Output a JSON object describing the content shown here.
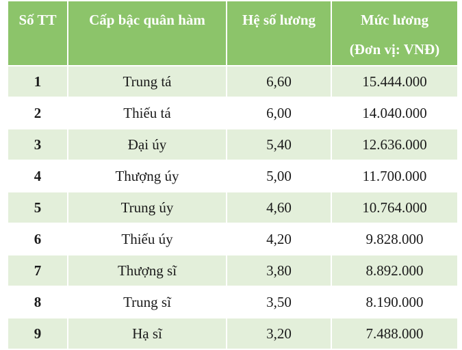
{
  "table": {
    "header": [
      "Số TT",
      "Cấp bậc quân hàm",
      "Hệ số lương",
      "Mức lương"
    ],
    "unit_note": "(Đơn vị: VNĐ)",
    "rows": [
      [
        "1",
        "Trung tá",
        "6,60",
        "15.444.000"
      ],
      [
        "2",
        "Thiếu tá",
        "6,00",
        "14.040.000"
      ],
      [
        "3",
        "Đại úy",
        "5,40",
        "12.636.000"
      ],
      [
        "4",
        "Thượng úy",
        "5,00",
        "11.700.000"
      ],
      [
        "5",
        "Trung úy",
        "4,60",
        "10.764.000"
      ],
      [
        "6",
        "Thiếu úy",
        "4,20",
        "9.828.000"
      ],
      [
        "7",
        "Thượng sĩ",
        "3,80",
        "8.892.000"
      ],
      [
        "8",
        "Trung sĩ",
        "3,50",
        "8.190.000"
      ],
      [
        "9",
        "Hạ sĩ",
        "3,20",
        "7.488.000"
      ]
    ]
  }
}
